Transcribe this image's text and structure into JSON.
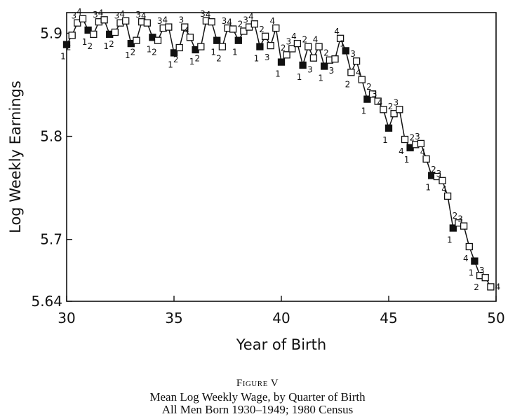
{
  "figure": {
    "label": "Figure V",
    "caption_line1": "Mean Log Weekly Wage, by Quarter of Birth",
    "caption_line2": "All Men Born 1930–1949; 1980 Census"
  },
  "chart_data": {
    "type": "line",
    "xlabel": "Year of Birth",
    "ylabel": "Log Weekly Earnings",
    "xlim": [
      30,
      50
    ],
    "ylim": [
      5.64,
      5.92
    ],
    "x_ticks": [
      30,
      35,
      40,
      45,
      50
    ],
    "x_tick_labels": [
      "30",
      "35",
      "40",
      "45",
      "50"
    ],
    "y_ticks": [
      5.64,
      5.7,
      5.8,
      5.9
    ],
    "y_tick_labels": [
      "5.64",
      "5.7",
      "5.8",
      "5.9"
    ],
    "grid": false,
    "legend": "none",
    "marker_note": "filled square = first quarter of birth; hollow square = quarters 2-4",
    "series": [
      {
        "x": [
          30.0,
          30.25,
          30.5,
          30.75,
          31.0,
          31.25,
          31.5,
          31.75,
          32.0,
          32.25,
          32.5,
          32.75,
          33.0,
          33.25,
          33.5,
          33.75,
          34.0,
          34.25,
          34.5,
          34.75,
          35.0,
          35.25,
          35.5,
          35.75,
          36.0,
          36.25,
          36.5,
          36.75,
          37.0,
          37.25,
          37.5,
          37.75,
          38.0,
          38.25,
          38.5,
          38.75,
          39.0,
          39.25,
          39.5,
          39.75,
          40.0,
          40.25,
          40.5,
          40.75,
          41.0,
          41.25,
          41.5,
          41.75,
          42.0,
          42.25,
          42.5,
          42.75,
          43.0,
          43.25,
          43.5,
          43.75,
          44.0,
          44.25,
          44.5,
          44.75,
          45.0,
          45.25,
          45.5,
          45.75,
          46.0,
          46.25,
          46.5,
          46.75,
          47.0,
          47.25,
          47.5,
          47.75,
          48.0,
          48.25,
          48.5,
          48.75,
          49.0,
          49.25,
          49.5,
          49.75
        ],
        "y": [
          5.889,
          5.898,
          5.91,
          5.914,
          5.903,
          5.899,
          5.911,
          5.913,
          5.899,
          5.901,
          5.91,
          5.912,
          5.89,
          5.893,
          5.911,
          5.91,
          5.896,
          5.893,
          5.905,
          5.906,
          5.881,
          5.886,
          5.906,
          5.896,
          5.884,
          5.887,
          5.912,
          5.911,
          5.893,
          5.887,
          5.905,
          5.904,
          5.893,
          5.902,
          5.906,
          5.909,
          5.887,
          5.897,
          5.888,
          5.905,
          5.872,
          5.879,
          5.885,
          5.89,
          5.869,
          5.887,
          5.876,
          5.887,
          5.868,
          5.874,
          5.875,
          5.895,
          5.883,
          5.862,
          5.873,
          5.855,
          5.836,
          5.841,
          5.834,
          5.826,
          5.808,
          5.822,
          5.826,
          5.797,
          5.789,
          5.792,
          5.793,
          5.778,
          5.762,
          5.761,
          5.757,
          5.742,
          5.711,
          5.716,
          5.713,
          5.693,
          5.679,
          5.665,
          5.663,
          5.654
        ],
        "quarters": [
          1,
          2,
          3,
          4,
          1,
          2,
          3,
          4,
          1,
          2,
          3,
          4,
          1,
          2,
          3,
          4,
          1,
          2,
          3,
          4,
          1,
          2,
          3,
          4,
          1,
          2,
          3,
          4,
          1,
          2,
          3,
          4,
          1,
          2,
          3,
          4,
          1,
          2,
          3,
          4,
          1,
          2,
          3,
          4,
          1,
          2,
          3,
          4,
          1,
          2,
          3,
          4,
          1,
          2,
          3,
          4,
          1,
          2,
          3,
          4,
          1,
          2,
          3,
          4,
          1,
          2,
          3,
          4,
          1,
          2,
          3,
          4,
          1,
          2,
          3,
          4,
          1,
          2,
          3,
          4
        ]
      }
    ]
  }
}
